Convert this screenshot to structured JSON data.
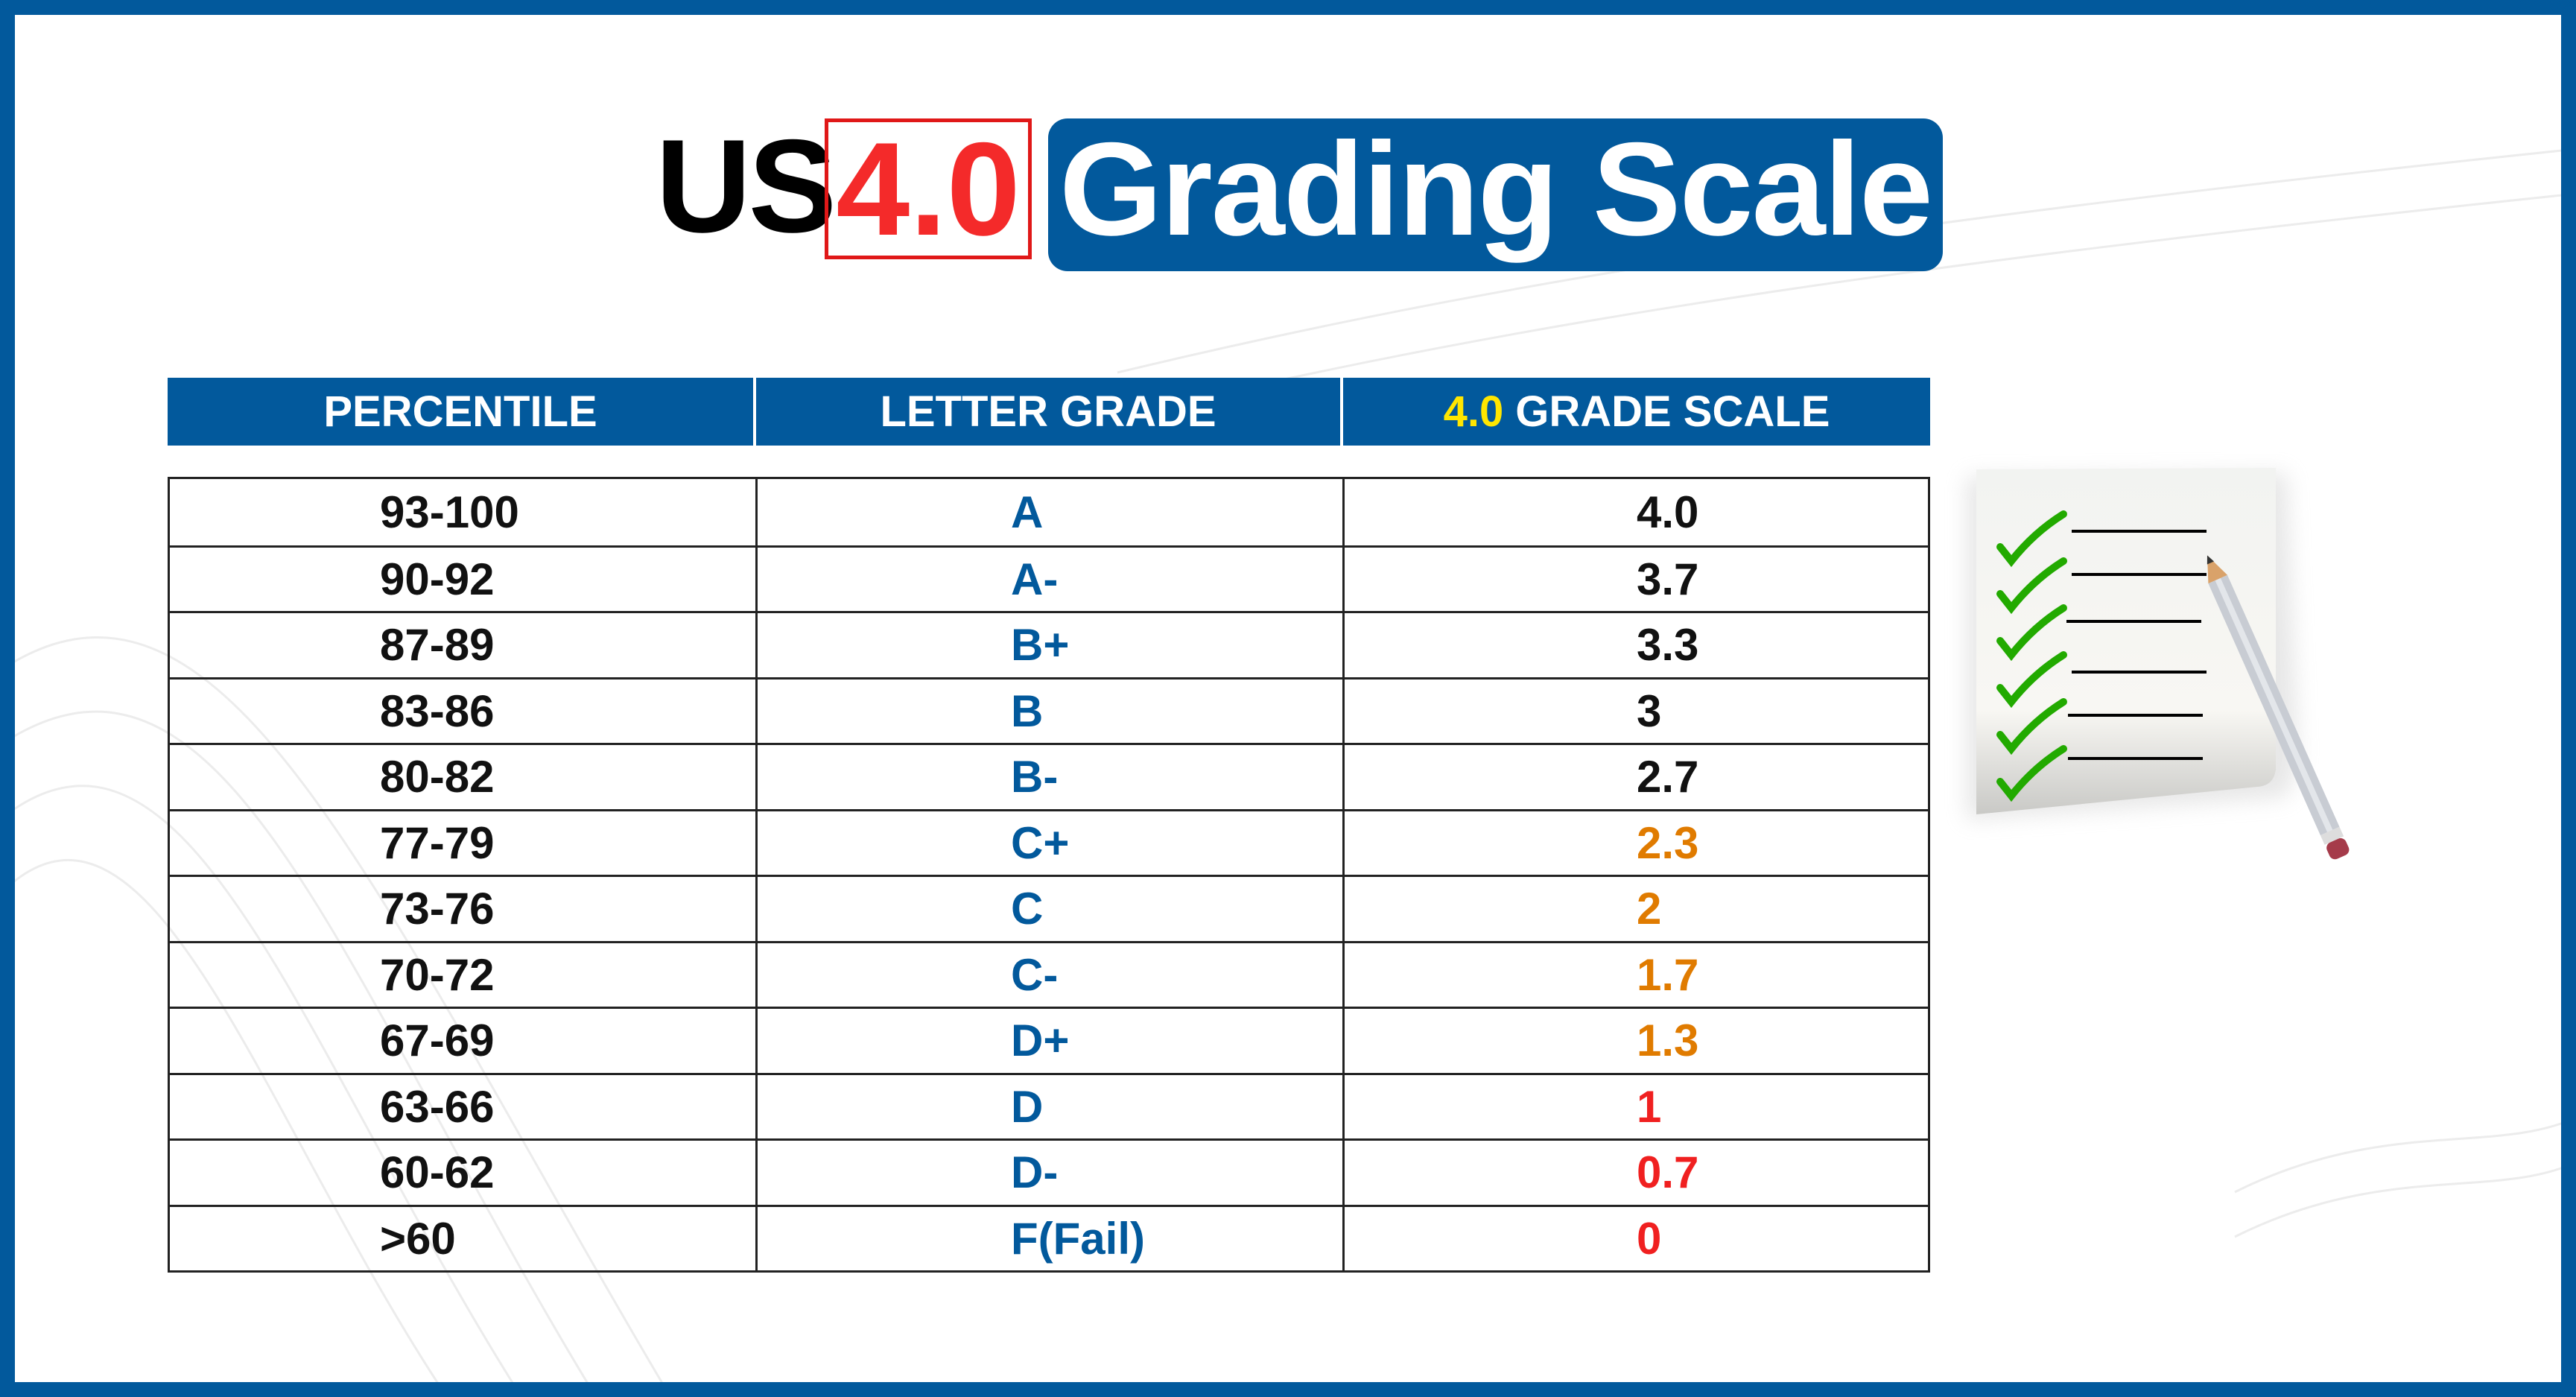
{
  "title": {
    "prefix": "US",
    "highlight": "4.0",
    "main": "Grading Scale"
  },
  "colors": {
    "brand": "#02599c",
    "highlight_red": "#f42a2a",
    "yellow": "#ffe600",
    "orange": "#e07b00",
    "red": "#f02020",
    "check_green": "#22aa00"
  },
  "table": {
    "headers": {
      "percentile": "PERCENTILE",
      "letter": "LETTER GRADE",
      "scale_prefix": "4.0",
      "scale": "GRADE SCALE"
    },
    "rows": [
      {
        "percentile": "93-100",
        "letter": "A",
        "scale": "4.0",
        "color": "#111111"
      },
      {
        "percentile": "90-92",
        "letter": "A-",
        "scale": "3.7",
        "color": "#111111"
      },
      {
        "percentile": "87-89",
        "letter": "B+",
        "scale": "3.3",
        "color": "#111111"
      },
      {
        "percentile": "83-86",
        "letter": "B",
        "scale": "3",
        "color": "#111111"
      },
      {
        "percentile": "80-82",
        "letter": "B-",
        "scale": "2.7",
        "color": "#111111"
      },
      {
        "percentile": "77-79",
        "letter": "C+",
        "scale": "2.3",
        "color": "#e07b00"
      },
      {
        "percentile": "73-76",
        "letter": "C",
        "scale": "2",
        "color": "#e07b00"
      },
      {
        "percentile": "70-72",
        "letter": "C-",
        "scale": "1.7",
        "color": "#e07b00"
      },
      {
        "percentile": "67-69",
        "letter": "D+",
        "scale": "1.3",
        "color": "#e07b00"
      },
      {
        "percentile": "63-66",
        "letter": "D",
        "scale": "1",
        "color": "#f02020"
      },
      {
        "percentile": "60-62",
        "letter": "D-",
        "scale": "0.7",
        "color": "#f02020"
      },
      {
        "percentile": ">60",
        "letter": "F(Fail)",
        "scale": "0",
        "color": "#f02020"
      }
    ]
  },
  "illustration": {
    "icon": "checklist-with-pencil-icon",
    "checks": 6
  }
}
